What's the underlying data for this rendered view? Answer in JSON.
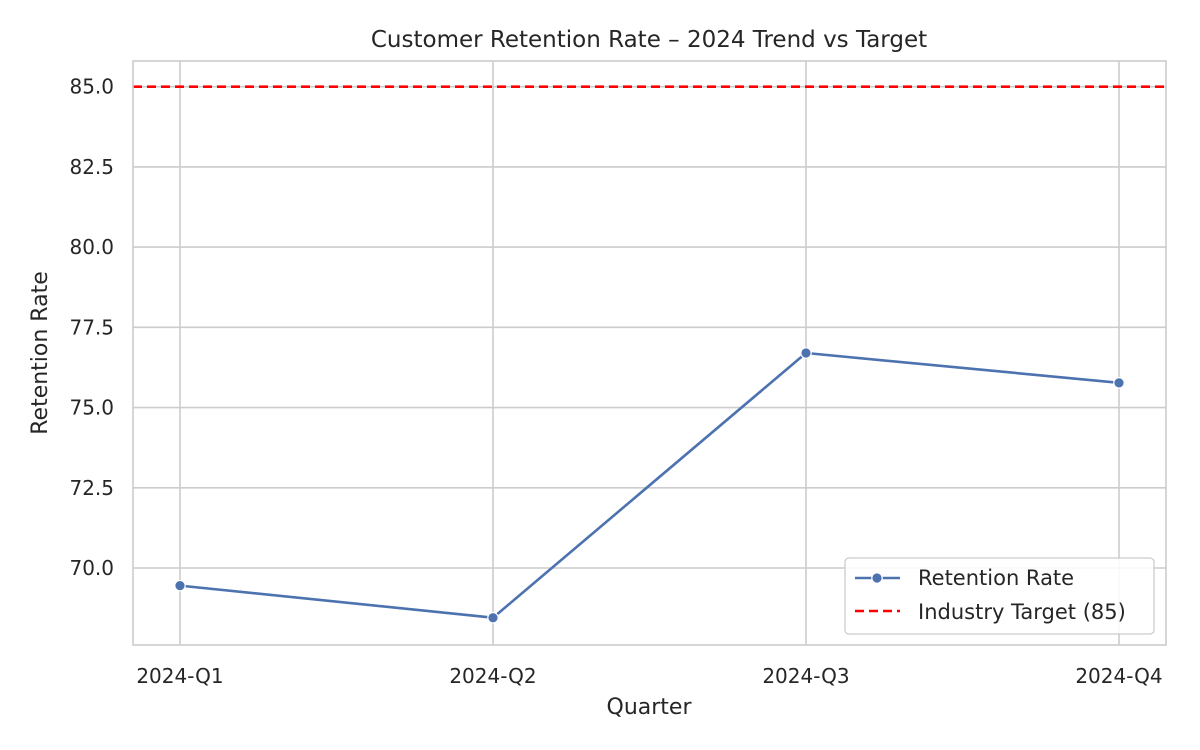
{
  "chart_data": {
    "type": "line",
    "title": "Customer Retention Rate – 2024 Trend vs Target",
    "xlabel": "Quarter",
    "ylabel": "Retention Rate",
    "categories": [
      "2024-Q1",
      "2024-Q2",
      "2024-Q3",
      "2024-Q4"
    ],
    "ylim": [
      67.6,
      85.8
    ],
    "yticks": [
      70.0,
      72.5,
      75.0,
      77.5,
      80.0,
      82.5,
      85.0
    ],
    "ytick_labels": [
      "70.0",
      "72.5",
      "75.0",
      "77.5",
      "80.0",
      "82.5",
      "85.0"
    ],
    "grid": true,
    "legend_position": "bottom-right",
    "series": [
      {
        "name": "Retention Rate",
        "values": [
          69.45,
          68.45,
          76.7,
          75.77
        ],
        "color": "#4c72b0",
        "style": "solid-with-markers"
      }
    ],
    "reference_lines": [
      {
        "name": "Industry Target (85)",
        "value": 85,
        "color": "#ff0000",
        "style": "dashed"
      }
    ]
  }
}
